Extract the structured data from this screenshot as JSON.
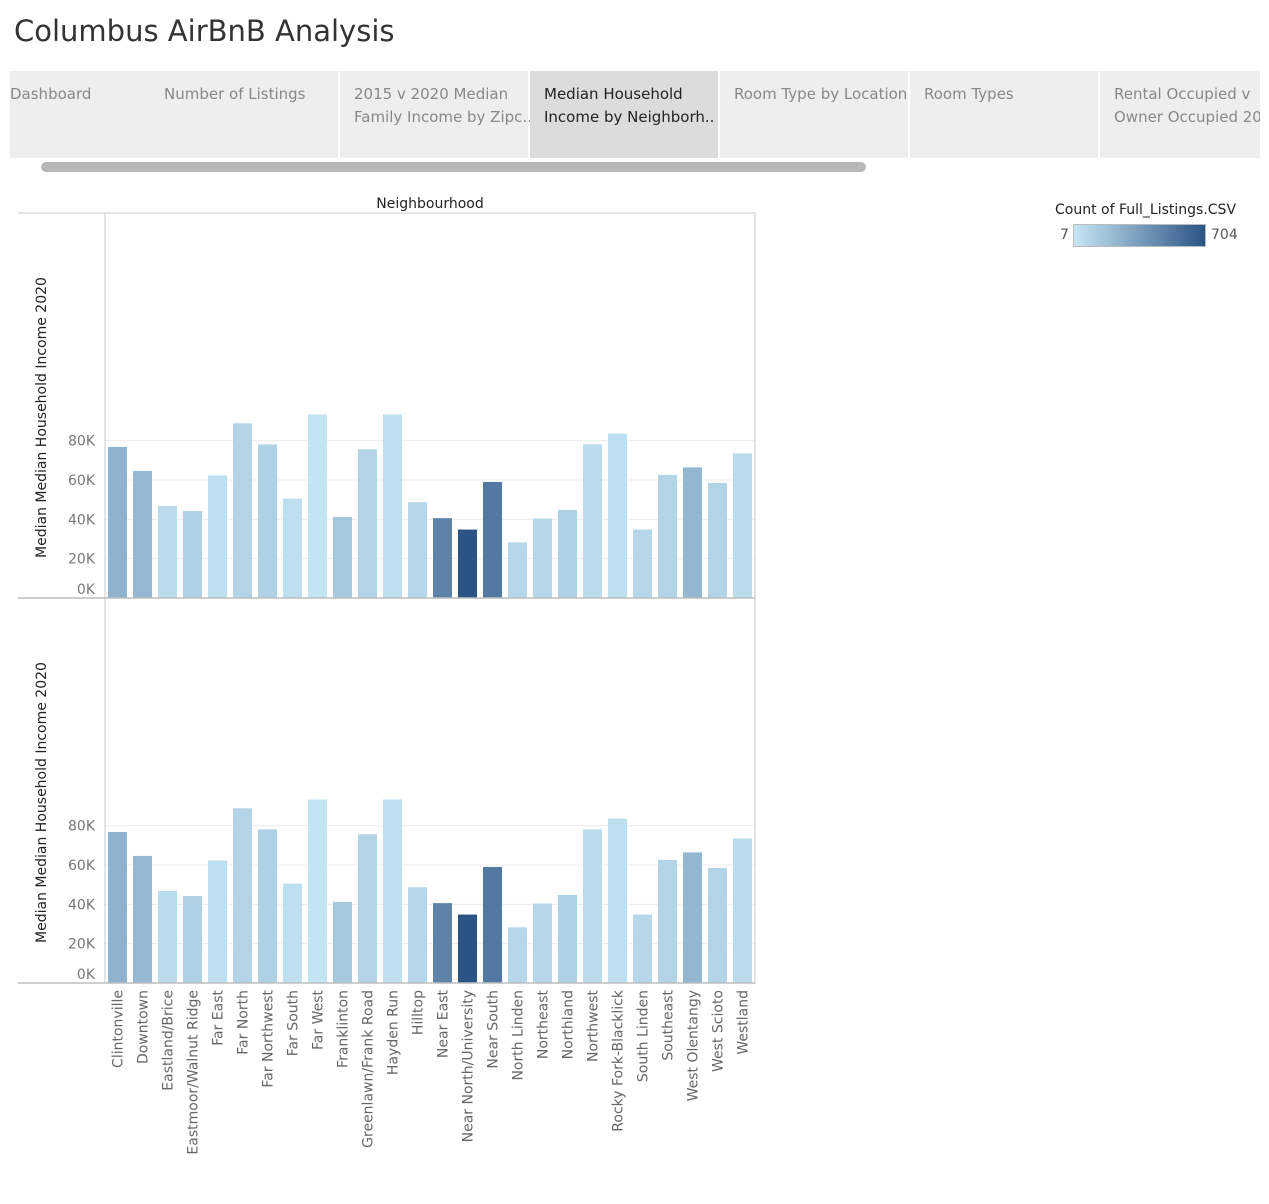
{
  "app_title": "Columbus AirBnB Analysis",
  "tabs": [
    {
      "line1": "Dashboard",
      "line2": ""
    },
    {
      "line1": "Number of Listings",
      "line2": ""
    },
    {
      "line1": "2015 v 2020 Median",
      "line2": "Family Income by Zipc.."
    },
    {
      "line1": "Median Household",
      "line2": "Income by Neighborh.."
    },
    {
      "line1": "Room Type by Location",
      "line2": ""
    },
    {
      "line1": "Room Types",
      "line2": ""
    },
    {
      "line1": "Rental Occupied v",
      "line2": "Owner Occupied 20.."
    }
  ],
  "active_tab": 3,
  "legend": {
    "title": "Count of Full_Listings.CSV",
    "min_label": "7",
    "max_label": "704",
    "min_color": "#c6e6f5",
    "max_color": "#2a5485"
  },
  "chart_data": {
    "type": "bar",
    "column_header": "Neighbourhood",
    "ylabel": "Median Median Household Income 2020",
    "ylim": [
      0,
      96000
    ],
    "y_ticks": [
      0,
      20000,
      40000,
      60000,
      80000
    ],
    "y_tick_labels": [
      "0K",
      "20K",
      "40K",
      "60K",
      "80K"
    ],
    "panels": 2,
    "categories": [
      "Clintonville",
      "Downtown",
      "Eastland/Brice",
      "Eastmoor/Walnut Ridge",
      "Far East",
      "Far North",
      "Far Northwest",
      "Far South",
      "Far West",
      "Franklinton",
      "Greenlawn/Frank Road",
      "Hayden Run",
      "Hilltop",
      "Near East",
      "Near North/University",
      "Near South",
      "North Linden",
      "Northeast",
      "Northland",
      "Northwest",
      "Rocky Fork-Blacklick",
      "South Linden",
      "Southeast",
      "West Olentangy",
      "West Scioto",
      "Westland"
    ],
    "values": [
      76800,
      64600,
      46800,
      44200,
      62300,
      88800,
      78100,
      50500,
      93300,
      41200,
      75600,
      93300,
      48700,
      40600,
      34800,
      59000,
      28300,
      40400,
      44800,
      78100,
      83600,
      34800,
      62600,
      66400,
      58500,
      73500
    ],
    "color_values": [
      180,
      150,
      30,
      60,
      20,
      50,
      60,
      20,
      10,
      90,
      50,
      20,
      40,
      420,
      704,
      480,
      40,
      40,
      60,
      30,
      20,
      40,
      50,
      160,
      50,
      30
    ]
  }
}
